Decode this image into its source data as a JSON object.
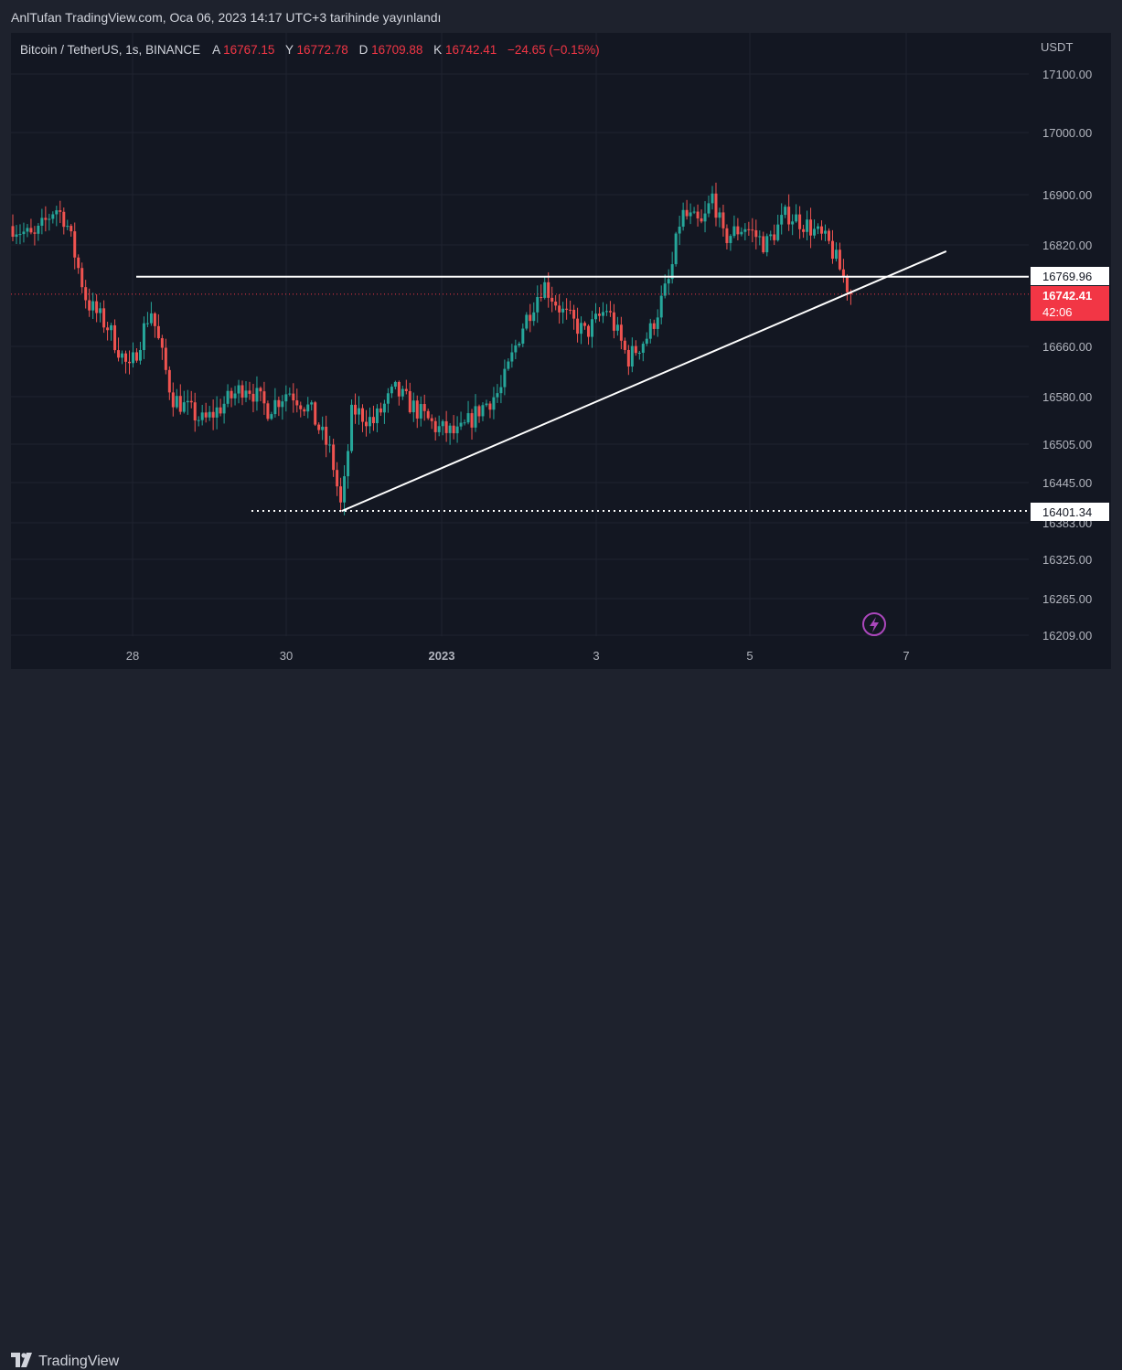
{
  "header": {
    "published_note": "AnlTufan TradingView.com, Oca 06, 2023 14:17 UTC+3 tarihinde yayınlandı"
  },
  "legend": {
    "symbol": "Bitcoin / TetherUS, 1s, BINANCE",
    "open_label": "A",
    "open_value": "16767.15",
    "high_label": "Y",
    "high_value": "16772.78",
    "low_label": "D",
    "low_value": "16709.88",
    "close_label": "K",
    "close_value": "16742.41",
    "change": "−24.65 (−0.15%)"
  },
  "price_axis": {
    "currency": "USDT",
    "ticks": [
      "17100.00",
      "17000.00",
      "16900.00",
      "16820.00",
      "16660.00",
      "16580.00",
      "16505.00",
      "16445.00",
      "16383.00",
      "16325.00",
      "16265.00",
      "16209.00"
    ]
  },
  "time_axis": {
    "ticks": [
      "28",
      "30",
      "2023",
      "3",
      "5",
      "7"
    ]
  },
  "price_labels": {
    "resistance": "16769.96",
    "last_price": "16742.41",
    "countdown": "42:06",
    "support": "16401.34"
  },
  "footer": {
    "brand": "TradingView"
  },
  "colors": {
    "up": "#26a69a",
    "down": "#ef5350",
    "background": "#131722",
    "grid": "#1f2330",
    "last_price": "#f23645"
  },
  "chart_data": {
    "type": "candlestick",
    "title": "Bitcoin / TetherUS, 1s, BINANCE",
    "y_unit": "USDT",
    "ylim": [
      16190,
      17150
    ],
    "x_ticks": [
      "28",
      "30",
      "2023",
      "3",
      "5",
      "7"
    ],
    "grid": true,
    "legend": "top-left",
    "approx_path": [
      [
        0,
        16850
      ],
      [
        2,
        16830
      ],
      [
        4,
        16880
      ],
      [
        5,
        16860
      ],
      [
        7,
        16730
      ],
      [
        9,
        16690
      ],
      [
        11,
        16620
      ],
      [
        13,
        16720
      ],
      [
        15,
        16580
      ],
      [
        18,
        16540
      ],
      [
        22,
        16600
      ],
      [
        24,
        16560
      ],
      [
        26,
        16590
      ],
      [
        28,
        16560
      ],
      [
        30,
        16490
      ],
      [
        31,
        16401
      ],
      [
        32,
        16560
      ],
      [
        34,
        16540
      ],
      [
        36,
        16590
      ],
      [
        38,
        16560
      ],
      [
        40,
        16530
      ],
      [
        42,
        16520
      ],
      [
        44,
        16560
      ],
      [
        46,
        16590
      ],
      [
        48,
        16690
      ],
      [
        50,
        16760
      ],
      [
        52,
        16710
      ],
      [
        54,
        16680
      ],
      [
        56,
        16720
      ],
      [
        58,
        16640
      ],
      [
        60,
        16680
      ],
      [
        62,
        16770
      ],
      [
        63,
        16870
      ],
      [
        65,
        16850
      ],
      [
        66,
        16900
      ],
      [
        67,
        16830
      ],
      [
        69,
        16850
      ],
      [
        71,
        16820
      ],
      [
        73,
        16870
      ],
      [
        75,
        16850
      ],
      [
        77,
        16820
      ],
      [
        79,
        16742
      ]
    ],
    "levels": {
      "resistance": 16769.96,
      "support": 16401.34,
      "last_close": 16742.41
    },
    "trendline": {
      "from": [
        31,
        16401
      ],
      "to": [
        88,
        16810
      ]
    },
    "ohlc_last": {
      "open": 16767.15,
      "high": 16772.78,
      "low": 16709.88,
      "close": 16742.41,
      "change": -24.65,
      "change_pct": -0.15
    }
  }
}
